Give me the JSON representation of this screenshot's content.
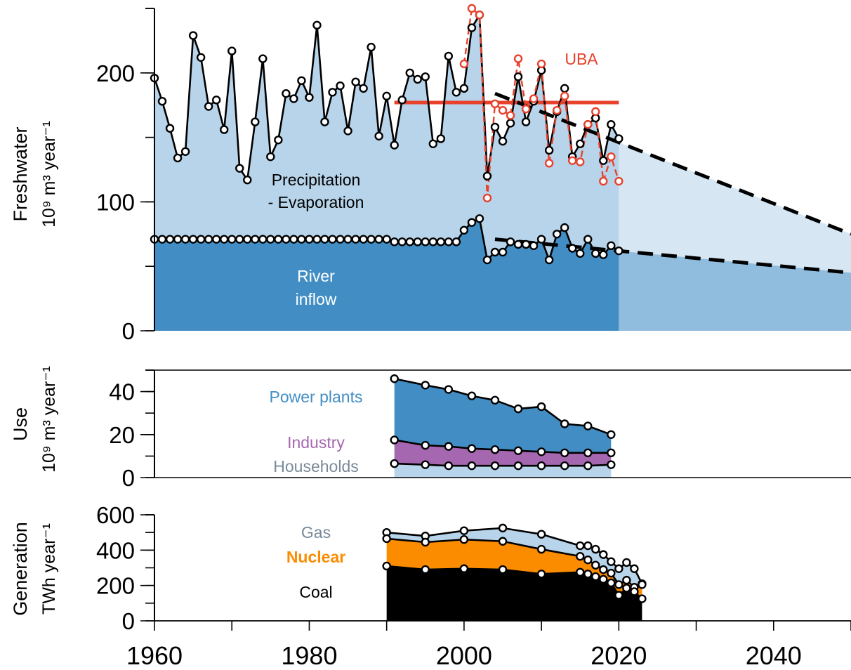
{
  "chart_data": [
    {
      "type": "area",
      "panel": "freshwater",
      "ylabel": "Freshwater",
      "ylabel_unit": "10⁹ m³ year⁻¹",
      "ylim": [
        0,
        250
      ],
      "yticks": [
        0,
        100,
        200
      ],
      "ytick_labels": [
        "0",
        "100",
        "200"
      ],
      "xlim": [
        1960,
        2050
      ],
      "series": [
        {
          "name": "Precipitation - Evaporation",
          "label_lines": [
            "Precipitation",
            "- Evaporation"
          ],
          "color": "#b7d4ea",
          "x": [
            1960,
            1961,
            1962,
            1963,
            1964,
            1965,
            1966,
            1967,
            1968,
            1969,
            1970,
            1971,
            1972,
            1973,
            1974,
            1975,
            1976,
            1977,
            1978,
            1979,
            1980,
            1981,
            1982,
            1983,
            1984,
            1985,
            1986,
            1987,
            1988,
            1989,
            1990,
            1991,
            1992,
            1993,
            1994,
            1995,
            1996,
            1997,
            1998,
            1999,
            2000,
            2001,
            2002,
            2003,
            2004,
            2005,
            2006,
            2007,
            2008,
            2009,
            2010,
            2011,
            2012,
            2013,
            2014,
            2015,
            2016,
            2017,
            2018,
            2019,
            2020
          ],
          "values": [
            196,
            178,
            157,
            134,
            139,
            229,
            212,
            174,
            179,
            156,
            217,
            126,
            117,
            162,
            211,
            135,
            148,
            184,
            180,
            194,
            181,
            237,
            162,
            185,
            190,
            155,
            193,
            188,
            220,
            151,
            182,
            144,
            179,
            200,
            195,
            197,
            145,
            149,
            213,
            185,
            188,
            235,
            245,
            120,
            158,
            147,
            161,
            197,
            162,
            178,
            202,
            140,
            170,
            188,
            135,
            145,
            160,
            165,
            132,
            160,
            149
          ]
        },
        {
          "name": "River inflow",
          "label_lines": [
            "River",
            "inflow"
          ],
          "color": "#428ec4",
          "x": [
            1960,
            1961,
            1962,
            1963,
            1964,
            1965,
            1966,
            1967,
            1968,
            1969,
            1970,
            1971,
            1972,
            1973,
            1974,
            1975,
            1976,
            1977,
            1978,
            1979,
            1980,
            1981,
            1982,
            1983,
            1984,
            1985,
            1986,
            1987,
            1988,
            1989,
            1990,
            1991,
            1992,
            1993,
            1994,
            1995,
            1996,
            1997,
            1998,
            1999,
            2000,
            2001,
            2002,
            2003,
            2004,
            2005,
            2006,
            2007,
            2008,
            2009,
            2010,
            2011,
            2012,
            2013,
            2014,
            2015,
            2016,
            2017,
            2018,
            2019,
            2020
          ],
          "values": [
            71,
            71,
            71,
            71,
            71,
            71,
            71,
            71,
            71,
            71,
            71,
            71,
            71,
            71,
            71,
            71,
            71,
            71,
            71,
            71,
            71,
            71,
            71,
            71,
            71,
            71,
            71,
            71,
            71,
            71,
            71,
            69,
            69,
            69,
            69,
            69,
            69,
            69,
            69,
            69,
            78,
            84,
            87,
            55,
            61,
            61,
            69,
            67,
            67,
            66,
            71,
            55,
            75,
            80,
            64,
            60,
            71,
            60,
            59,
            66,
            62
          ]
        },
        {
          "name": "UBA",
          "color": "#e8412c",
          "x": [
            2000,
            2001,
            2002,
            2003,
            2004,
            2005,
            2006,
            2007,
            2008,
            2009,
            2010,
            2011,
            2012,
            2013,
            2014,
            2015,
            2016,
            2017,
            2018,
            2019,
            2020
          ],
          "values": [
            207,
            250,
            245,
            103,
            176,
            171,
            167,
            211,
            172,
            180,
            207,
            130,
            171,
            182,
            132,
            131,
            160,
            170,
            116,
            135,
            116
          ]
        }
      ],
      "uba_mean": {
        "x": [
          1991,
          2020
        ],
        "value": 177
      },
      "projections": [
        {
          "name": "Precipitation - Evaporation",
          "x": [
            2004,
            2050
          ],
          "values": [
            184,
            75
          ],
          "fill_from": 2020
        },
        {
          "name": "River inflow",
          "x": [
            2004,
            2050
          ],
          "values": [
            71,
            45
          ],
          "fill_from": 2020
        }
      ],
      "annotations": [
        "UBA"
      ]
    },
    {
      "type": "area",
      "panel": "use",
      "ylabel": "Use",
      "ylabel_unit": "10⁹ m³ year⁻¹",
      "ylim": [
        0,
        50
      ],
      "yticks": [
        0,
        20,
        40
      ],
      "ytick_labels": [
        "0",
        "20",
        "40"
      ],
      "x": [
        1991,
        1995,
        1998,
        2001,
        2004,
        2007,
        2010,
        2013,
        2016,
        2019
      ],
      "series": [
        {
          "name": "Power plants",
          "color": "#428ec4",
          "values": [
            46,
            43,
            41,
            38,
            36,
            32,
            33,
            25,
            24,
            20
          ]
        },
        {
          "name": "Industry",
          "color": "#a667b1",
          "values": [
            17.5,
            15,
            14.5,
            13.5,
            13,
            12.5,
            12,
            11.5,
            11.5,
            11.5
          ]
        },
        {
          "name": "Households",
          "color": "#b7d4ea",
          "values": [
            6.5,
            6,
            5.5,
            5.5,
            5.5,
            5.5,
            5.5,
            5.5,
            5.5,
            6
          ]
        }
      ],
      "label_colors": {
        "Power plants": "#428ec4",
        "Industry": "#a667b1",
        "Households": "#7a8a99"
      }
    },
    {
      "type": "area",
      "panel": "generation",
      "ylabel": "Generation",
      "ylabel_unit": "TWh year⁻¹",
      "ylim": [
        0,
        600
      ],
      "yticks": [
        0,
        200,
        400,
        600
      ],
      "ytick_labels": [
        "0",
        "200",
        "400",
        "600"
      ],
      "x": [
        1990,
        1995,
        2000,
        2005,
        2010,
        2015,
        2016,
        2017,
        2018,
        2019,
        2020,
        2021,
        2022,
        2023
      ],
      "series": [
        {
          "name": "Gas",
          "color": "#b7d4ea",
          "values": [
            500,
            480,
            510,
            525,
            490,
            425,
            425,
            405,
            375,
            335,
            295,
            330,
            295,
            210
          ]
        },
        {
          "name": "Nuclear",
          "color": "#fb8c00",
          "values": [
            465,
            445,
            460,
            450,
            405,
            365,
            345,
            315,
            290,
            270,
            205,
            230,
            190,
            205
          ]
        },
        {
          "name": "Coal",
          "color": "#000000",
          "values": [
            310,
            290,
            295,
            290,
            265,
            275,
            265,
            250,
            235,
            215,
            145,
            185,
            165,
            125
          ]
        }
      ],
      "label_colors": {
        "Gas": "#778899",
        "Nuclear": "#fb8c00",
        "Coal": "#000000"
      }
    }
  ],
  "x_axis": {
    "ticks": [
      1960,
      1970,
      1980,
      1990,
      2000,
      2010,
      2020,
      2030,
      2040,
      2050
    ],
    "labels": [
      "1960",
      "1980",
      "2000",
      "2020",
      "2040"
    ],
    "label_values": [
      1960,
      1980,
      2000,
      2020,
      2040
    ]
  }
}
